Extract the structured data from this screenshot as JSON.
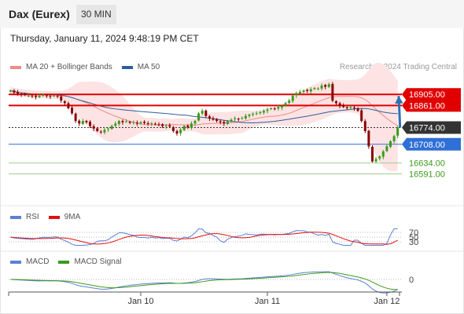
{
  "header": {
    "title": "Dax (Eurex)",
    "timeframe": "30 MIN"
  },
  "datetime": "Thursday, January 11, 2024 9:48:19 PM CET",
  "credit": "Research © 2024 Trading Central",
  "legend_main": [
    {
      "label": "MA 20 + Bollinger Bands",
      "color": "#f08a8a"
    },
    {
      "label": "MA 50",
      "color": "#2f5d9b"
    }
  ],
  "legend_rsi": [
    {
      "label": "RSI",
      "color": "#5b7fd6"
    },
    {
      "label": "9MA",
      "color": "#e01010"
    }
  ],
  "legend_macd": [
    {
      "label": "MACD",
      "color": "#5b7fd6"
    },
    {
      "label": "MACD Signal",
      "color": "#3a9a1a"
    }
  ],
  "colors": {
    "resistance": "#e00000",
    "pivot": "#2f6fd6",
    "support": "#3a9a1a",
    "last": "#333333",
    "bull": "#3a9a1a",
    "bear": "#8b0000",
    "band": "#fde3e3",
    "ma20": "#f08a8a",
    "ma50": "#2f5d9b",
    "arrow": "#2f6fb0"
  },
  "chart_data": {
    "type": "candlestick",
    "price_range": [
      16540,
      16980
    ],
    "levels": [
      {
        "value": 16905.0,
        "label": "16905.00",
        "kind": "resistance"
      },
      {
        "value": 16861.0,
        "label": "16861.00",
        "kind": "resistance"
      },
      {
        "value": 16774.0,
        "label": "16774.00",
        "kind": "last"
      },
      {
        "value": 16708.0,
        "label": "16708.00",
        "kind": "pivot"
      },
      {
        "value": 16634.0,
        "label": "16634.00",
        "kind": "support"
      },
      {
        "value": 16591.0,
        "label": "16591.00",
        "kind": "support"
      }
    ],
    "x_ticks": [
      {
        "label": "Jan 10",
        "index": 36
      },
      {
        "label": "Jan 11",
        "index": 71
      },
      {
        "label": "Jan 12",
        "index": 104
      }
    ],
    "bar_count": 108,
    "closes": [
      16920,
      16912,
      16908,
      16905,
      16902,
      16900,
      16898,
      16895,
      16900,
      16903,
      16899,
      16897,
      16900,
      16896,
      16880,
      16870,
      16850,
      16830,
      16800,
      16790,
      16800,
      16795,
      16780,
      16770,
      16760,
      16755,
      16765,
      16770,
      16780,
      16790,
      16800,
      16795,
      16798,
      16793,
      16796,
      16790,
      16795,
      16792,
      16789,
      16791,
      16787,
      16785,
      16780,
      16782,
      16778,
      16760,
      16750,
      16765,
      16780,
      16775,
      16790,
      16800,
      16830,
      16840,
      16820,
      16810,
      16805,
      16800,
      16795,
      16790,
      16800,
      16805,
      16810,
      16808,
      16812,
      16820,
      16825,
      16828,
      16830,
      16835,
      16840,
      16845,
      16850,
      16848,
      16855,
      16860,
      16870,
      16880,
      16900,
      16910,
      16915,
      16920,
      16918,
      16925,
      16930,
      16928,
      16940,
      16935,
      16945,
      16880,
      16870,
      16860,
      16855,
      16850,
      16855,
      16850,
      16840,
      16800,
      16760,
      16700,
      16640,
      16650,
      16660,
      16680,
      16700,
      16720,
      16740,
      16774
    ],
    "rsi": {
      "levels": [
        70,
        50,
        30
      ],
      "range": [
        0,
        100
      ]
    },
    "macd": {
      "levels": [
        0
      ]
    }
  }
}
